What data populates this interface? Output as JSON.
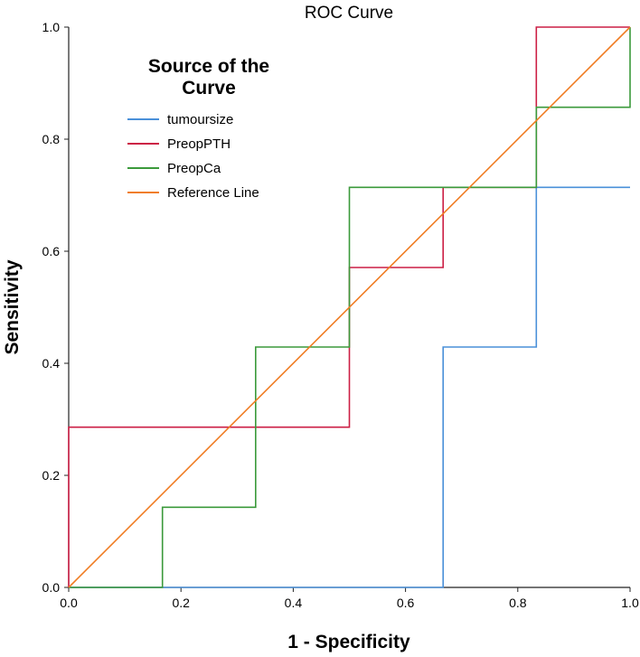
{
  "chart_data": {
    "type": "line",
    "title": "ROC Curve",
    "xlabel": "1 - Specificity",
    "ylabel": "Sensitivity",
    "xlim": [
      0,
      1
    ],
    "ylim": [
      0,
      1
    ],
    "xticks": [
      "0.0",
      "0.2",
      "0.4",
      "0.6",
      "0.8",
      "1.0"
    ],
    "yticks": [
      "0.0",
      "0.2",
      "0.4",
      "0.6",
      "0.8",
      "1.0"
    ],
    "grid": false,
    "legend": {
      "title": "Source of the Curve",
      "position": "top-left"
    },
    "series": [
      {
        "name": "tumoursize",
        "color": "#4a90d9",
        "x": [
          0,
          0.667,
          0.667,
          0.833,
          0.833,
          1.0
        ],
        "y": [
          0,
          0,
          0.429,
          0.429,
          0.714,
          0.714
        ]
      },
      {
        "name": "PreopPTH",
        "color": "#cc1f45",
        "x": [
          0,
          0,
          0.5,
          0.5,
          0.667,
          0.667,
          0.833,
          0.833,
          1.0
        ],
        "y": [
          0,
          0.286,
          0.286,
          0.571,
          0.571,
          0.714,
          0.714,
          1.0,
          1.0
        ]
      },
      {
        "name": "PreopCa",
        "color": "#3b9a3b",
        "x": [
          0,
          0.167,
          0.167,
          0.333,
          0.333,
          0.5,
          0.5,
          0.833,
          0.833,
          1.0,
          1.0
        ],
        "y": [
          0,
          0,
          0.143,
          0.143,
          0.429,
          0.429,
          0.714,
          0.714,
          0.857,
          0.857,
          1.0
        ]
      },
      {
        "name": "Reference Line",
        "color": "#f07d24",
        "x": [
          0,
          1
        ],
        "y": [
          0,
          1
        ]
      }
    ]
  }
}
